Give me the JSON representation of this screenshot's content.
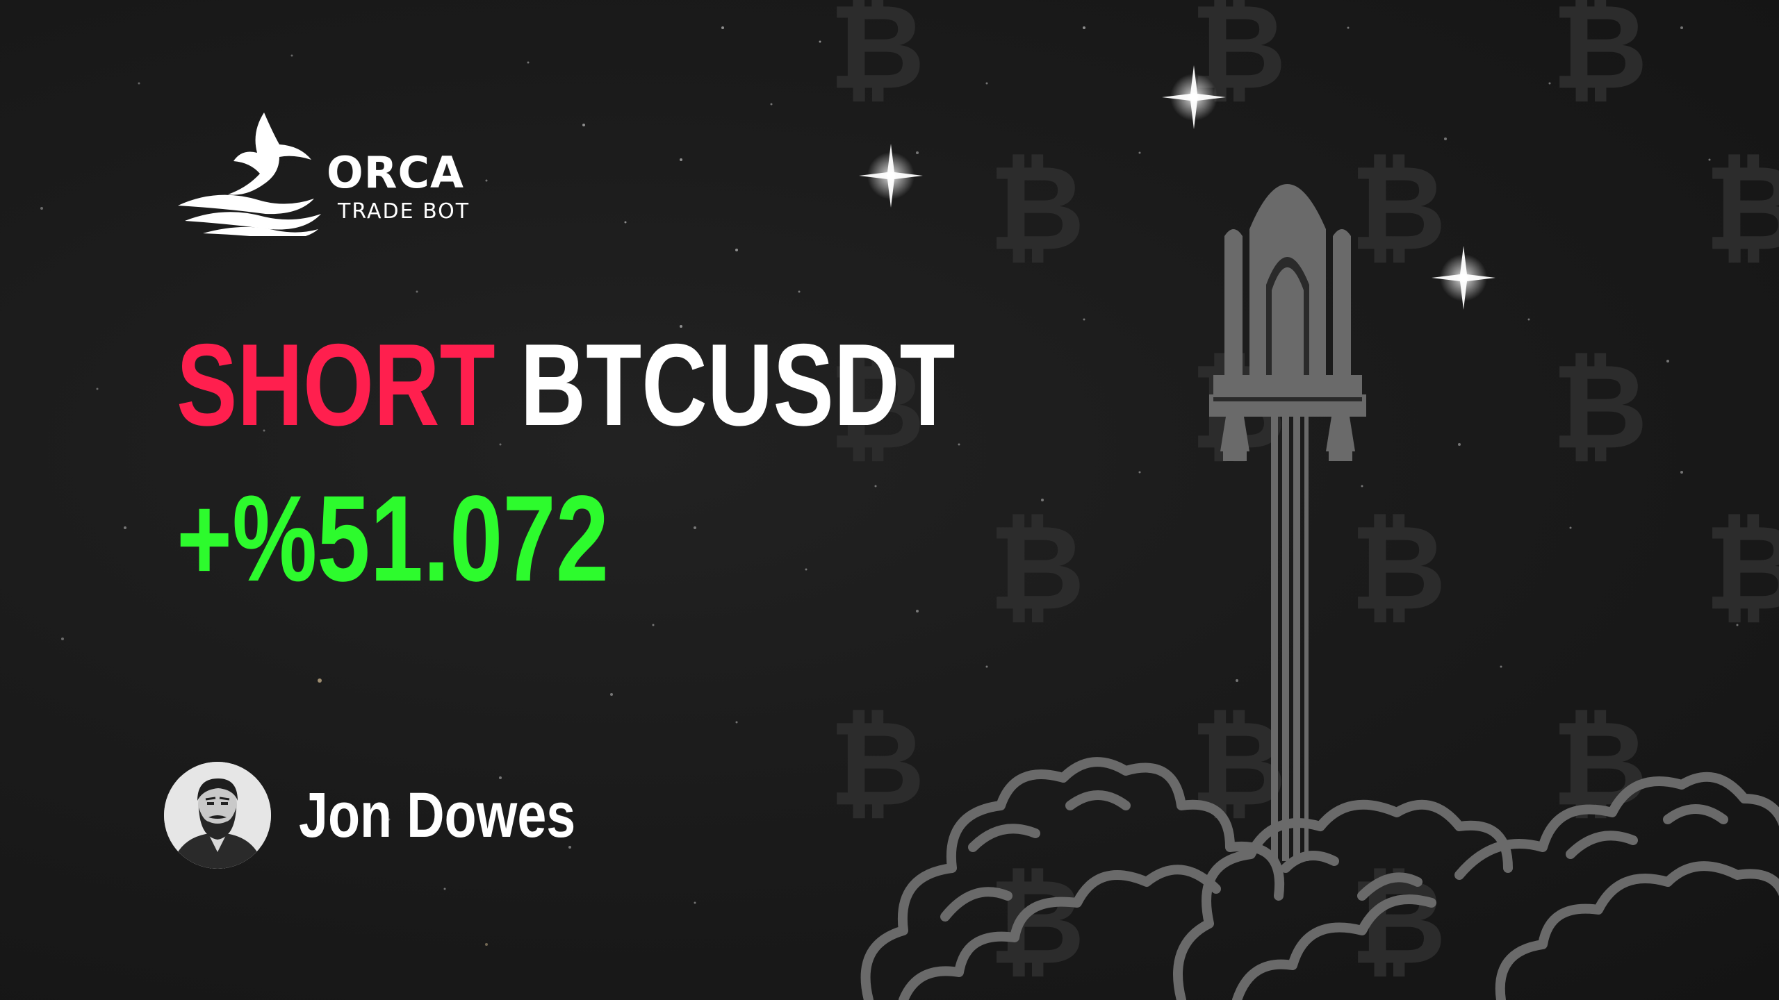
{
  "brand": {
    "name": "ORCA",
    "subtitle": "TRADE BOT",
    "logo_icon": "orca-whale-tail-icon"
  },
  "signal": {
    "side": "SHORT",
    "pair": "BTCUSDT",
    "pnl": "+%51.072"
  },
  "trader": {
    "name": "Jon Dowes",
    "avatar_icon": "bearded-man-avatar-icon"
  },
  "decor": {
    "background_pattern_icon": "bitcoin-symbol-icon",
    "rocket_icon": "space-shuttle-icon",
    "smoke_icon": "launch-smoke-cloud-icon",
    "sparkle_icon": "sparkle-star-icon"
  },
  "colors": {
    "background": "#1b1b1b",
    "short": "#ff1f4e",
    "profit": "#2dfb2d",
    "text": "#ffffff",
    "decor_gray": "#6a6a6a",
    "pattern_gray": "#2c2c2c"
  }
}
